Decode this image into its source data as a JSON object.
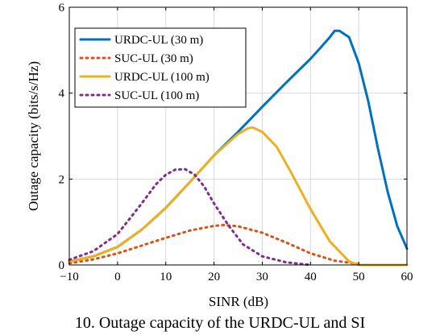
{
  "chart_data": {
    "type": "line",
    "title": "",
    "xlabel": "SINR (dB)",
    "ylabel": "Outage capacity (bits/s/Hz)",
    "xlim": [
      -10,
      60
    ],
    "ylim": [
      0,
      6
    ],
    "xticks": [
      -10,
      0,
      10,
      20,
      30,
      40,
      50,
      60
    ],
    "yticks": [
      0,
      2,
      4,
      6
    ],
    "xtick_labels": [
      "−10",
      "0",
      "10",
      "20",
      "30",
      "40",
      "50",
      "60"
    ],
    "ytick_labels": [
      "0",
      "2",
      "4",
      "6"
    ],
    "grid": true,
    "legend_position": "top-left",
    "series": [
      {
        "name": "URDC-UL (30 m)",
        "color": "#0072bd",
        "dash": "solid",
        "x": [
          -10,
          -5,
          0,
          5,
          10,
          15,
          20,
          25,
          30,
          35,
          40,
          42,
          44,
          45,
          46,
          48,
          50,
          52,
          54,
          56,
          58,
          60
        ],
        "y": [
          0.08,
          0.2,
          0.42,
          0.82,
          1.33,
          1.93,
          2.55,
          3.1,
          3.68,
          4.25,
          4.8,
          5.05,
          5.3,
          5.45,
          5.45,
          5.3,
          4.7,
          3.8,
          2.7,
          1.7,
          0.9,
          0.38
        ]
      },
      {
        "name": "SUC-UL (30 m)",
        "color": "#d95319",
        "dash": "dotted",
        "x": [
          -10,
          -5,
          0,
          5,
          10,
          15,
          20,
          22,
          25,
          30,
          35,
          40,
          45,
          50
        ],
        "y": [
          0.04,
          0.13,
          0.27,
          0.45,
          0.63,
          0.8,
          0.91,
          0.93,
          0.9,
          0.75,
          0.52,
          0.27,
          0.1,
          0.02
        ]
      },
      {
        "name": "URDC-UL (100 m)",
        "color": "#edb120",
        "dash": "solid",
        "x": [
          -10,
          -5,
          0,
          5,
          10,
          15,
          20,
          25,
          27,
          28,
          30,
          33,
          36,
          40,
          44,
          48,
          50,
          55,
          60
        ],
        "y": [
          0.08,
          0.2,
          0.42,
          0.82,
          1.33,
          1.93,
          2.55,
          3.05,
          3.18,
          3.2,
          3.1,
          2.75,
          2.15,
          1.3,
          0.55,
          0.08,
          0.0,
          0.0,
          0.0
        ]
      },
      {
        "name": "SUC-UL (100 m)",
        "color": "#7e2f8e",
        "dash": "dotted",
        "x": [
          -10,
          -5,
          0,
          5,
          8,
          10,
          12,
          14,
          16,
          18,
          20,
          23,
          26,
          30,
          35,
          40
        ],
        "y": [
          0.12,
          0.32,
          0.72,
          1.43,
          1.88,
          2.1,
          2.22,
          2.23,
          2.1,
          1.82,
          1.43,
          0.92,
          0.48,
          0.2,
          0.06,
          0.0
        ]
      }
    ]
  },
  "caption": {
    "text": "10.  Outage capacity of the URDC-UL and SI"
  }
}
